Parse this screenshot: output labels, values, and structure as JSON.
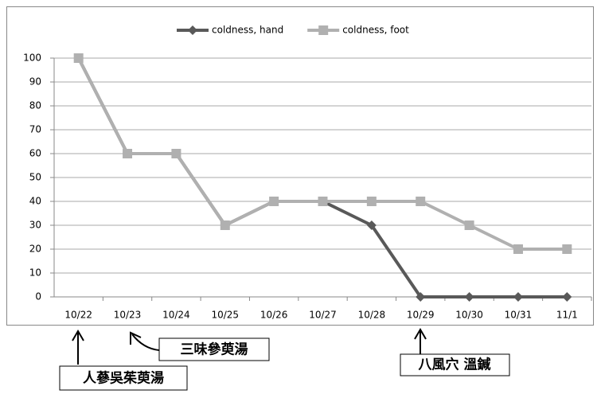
{
  "chart_data": {
    "type": "line",
    "categories": [
      "10/22",
      "10/23",
      "10/24",
      "10/25",
      "10/26",
      "10/27",
      "10/28",
      "10/29",
      "10/30",
      "10/31",
      "11/1"
    ],
    "series": [
      {
        "name": "coldness, hand",
        "color": "#595959",
        "marker": "diamond",
        "values": [
          100,
          60,
          60,
          30,
          40,
          40,
          30,
          0,
          0,
          0,
          0
        ]
      },
      {
        "name": "coldness, foot",
        "color": "#b0b0b0",
        "marker": "square",
        "values": [
          100,
          60,
          60,
          30,
          40,
          40,
          40,
          40,
          30,
          20,
          20
        ]
      }
    ],
    "ylim": [
      0,
      100
    ],
    "yticks": [
      0,
      10,
      20,
      30,
      40,
      50,
      60,
      70,
      80,
      90,
      100
    ],
    "grid": true,
    "legend": "top",
    "annotations": [
      "人蔘吳茱萸湯",
      "三味參萸湯",
      "八風穴 溫鍼"
    ]
  }
}
